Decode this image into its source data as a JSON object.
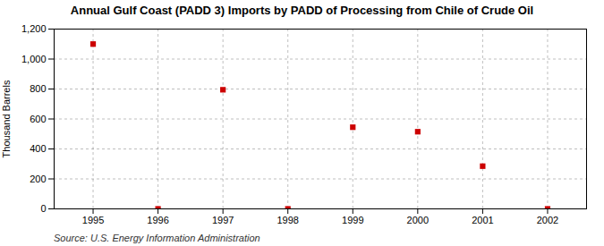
{
  "chart_data": {
    "type": "scatter",
    "title": "Annual Gulf Coast (PADD 3) Imports by PADD of Processing from Chile of Crude Oil",
    "ylabel": "Thousand Barrels",
    "source": "Source: U.S. Energy Information Administration",
    "x": [
      1995,
      1996,
      1997,
      1998,
      1999,
      2000,
      2001,
      2002
    ],
    "values": [
      1100,
      0,
      795,
      0,
      545,
      515,
      285,
      0
    ],
    "color": "#cc0000",
    "marker": "square",
    "xlim": [
      1994.4,
      2002.6
    ],
    "xticks": [
      1995,
      1996,
      1997,
      1998,
      1999,
      2000,
      2001,
      2002
    ],
    "ylim": [
      0,
      1200
    ],
    "yticks": [
      0,
      200,
      400,
      600,
      800,
      {
        "value": 1000,
        "label": "1,000"
      },
      {
        "value": 1200,
        "label": "1,200"
      }
    ],
    "grid": true
  }
}
